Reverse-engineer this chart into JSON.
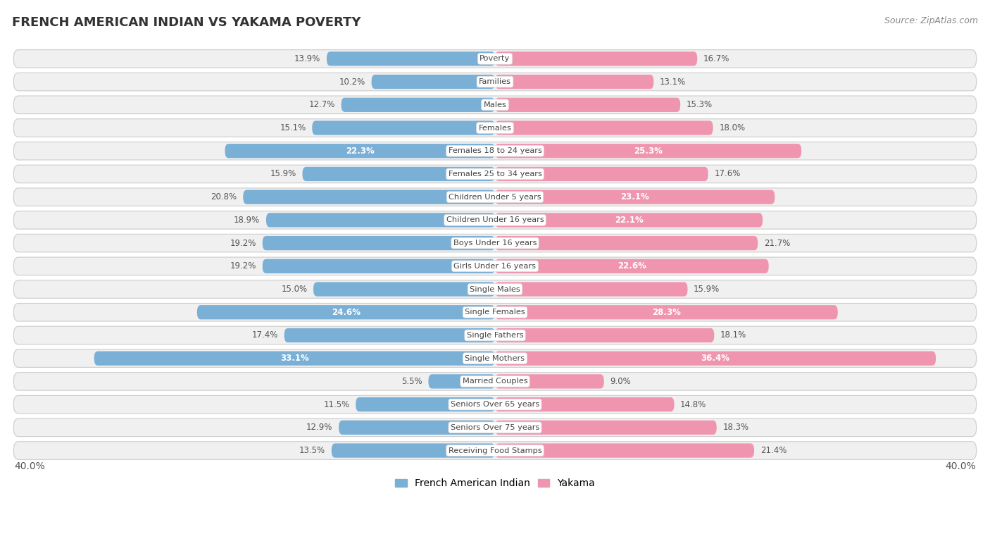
{
  "title": "FRENCH AMERICAN INDIAN VS YAKAMA POVERTY",
  "source": "Source: ZipAtlas.com",
  "categories": [
    "Poverty",
    "Families",
    "Males",
    "Females",
    "Females 18 to 24 years",
    "Females 25 to 34 years",
    "Children Under 5 years",
    "Children Under 16 years",
    "Boys Under 16 years",
    "Girls Under 16 years",
    "Single Males",
    "Single Females",
    "Single Fathers",
    "Single Mothers",
    "Married Couples",
    "Seniors Over 65 years",
    "Seniors Over 75 years",
    "Receiving Food Stamps"
  ],
  "french_values": [
    13.9,
    10.2,
    12.7,
    15.1,
    22.3,
    15.9,
    20.8,
    18.9,
    19.2,
    19.2,
    15.0,
    24.6,
    17.4,
    33.1,
    5.5,
    11.5,
    12.9,
    13.5
  ],
  "yakama_values": [
    16.7,
    13.1,
    15.3,
    18.0,
    25.3,
    17.6,
    23.1,
    22.1,
    21.7,
    22.6,
    15.9,
    28.3,
    18.1,
    36.4,
    9.0,
    14.8,
    18.3,
    21.4
  ],
  "french_color": "#7aafd6",
  "yakama_color": "#f095b0",
  "french_color_inside": "#5b9bbf",
  "yakama_color_inside": "#e8607a",
  "row_bg": "#e8e8e8",
  "axis_max": 40.0,
  "legend_label_french": "French American Indian",
  "legend_label_yakama": "Yakama",
  "axis_label_left": "40.0%",
  "axis_label_right": "40.0%",
  "inside_threshold": 22.0
}
